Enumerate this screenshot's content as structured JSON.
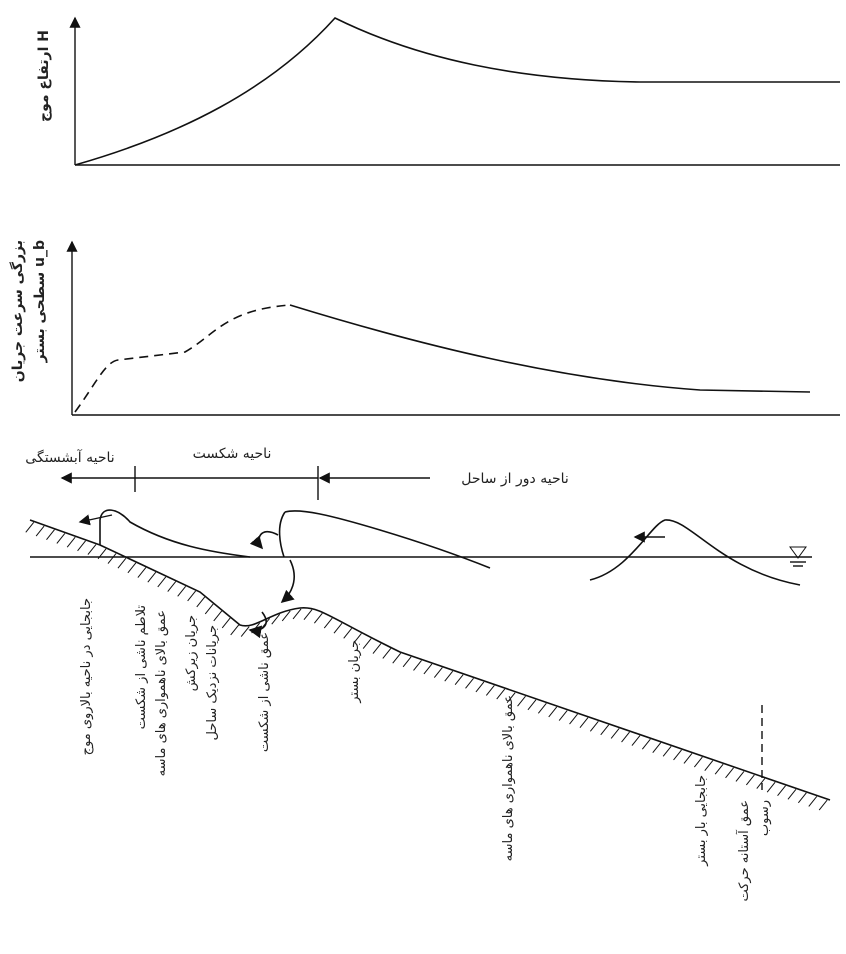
{
  "panels": {
    "wave_height_label": "ارتفاع موج H",
    "velocity_label": [
      "بزرگی سرعت جریان",
      "سطحی بستر u_b"
    ]
  },
  "zones": [
    "ناحیه آبشستگی",
    "ناحیه شکست",
    "ناحیه دور از ساحل"
  ],
  "processes": [
    "جابجایی در ناحیه بالاروی موج",
    "تلاطم ناشی از شکست",
    "عمق بالای ناهمواری های ماسه",
    "جریان زیرکش",
    "جریانات نزدیک ساحل",
    "عمق ناشی از شکست",
    "جریان بستر",
    "عمق بالای ناهمواری های ماسه",
    "جابجایی بار بستر",
    "عمق آستانه حرکت",
    "رسوب"
  ]
}
